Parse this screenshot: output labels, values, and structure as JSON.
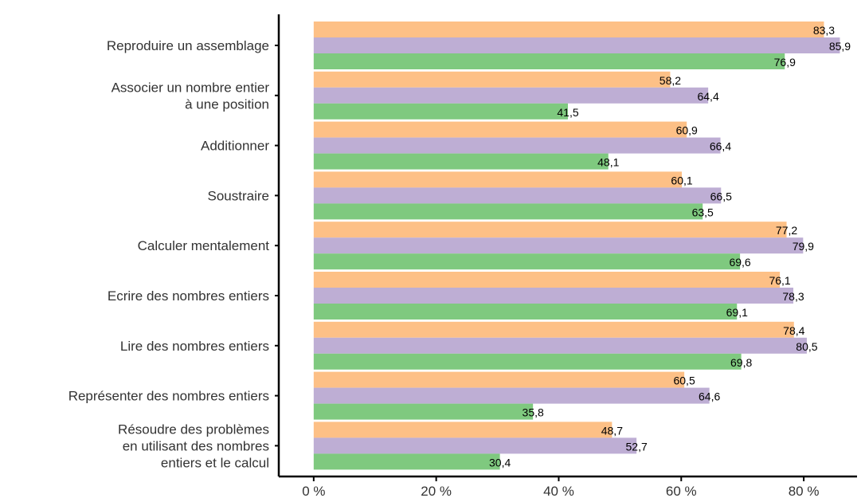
{
  "chart_data": {
    "type": "bar",
    "orientation": "horizontal",
    "categories": [
      "Reproduire un assemblage",
      "Associer un nombre entier\nà une position",
      "Additionner",
      "Soustraire",
      "Calculer mentalement",
      "Ecrire des nombres entiers",
      "Lire des nombres entiers",
      "Représenter des nombres entiers",
      "Résoudre des problèmes\nen utilisant des nombres\nentiers et le calcul"
    ],
    "series": [
      {
        "color": "#FDC086",
        "values": [
          83.3,
          58.2,
          60.9,
          60.1,
          77.2,
          76.1,
          78.4,
          60.5,
          48.7
        ],
        "labels": [
          "83,3",
          "58,2",
          "60,9",
          "60,1",
          "77,2",
          "76,1",
          "78,4",
          "60,5",
          "48,7"
        ]
      },
      {
        "color": "#BEAED4",
        "values": [
          85.9,
          64.4,
          66.4,
          66.5,
          79.9,
          78.3,
          80.5,
          64.6,
          52.7
        ],
        "labels": [
          "85,9",
          "64,4",
          "66,4",
          "66,5",
          "79,9",
          "78,3",
          "80,5",
          "64,6",
          "52,7"
        ]
      },
      {
        "color": "#7FC97F",
        "values": [
          76.9,
          41.5,
          48.1,
          63.5,
          69.6,
          69.1,
          69.8,
          35.8,
          30.4
        ],
        "labels": [
          "76,9",
          "41,5",
          "48,1",
          "63,5",
          "69,6",
          "69,1",
          "69,8",
          "35,8",
          "30,4"
        ]
      }
    ],
    "x_ticks": [
      0,
      20,
      40,
      60,
      80
    ],
    "x_tick_labels": [
      "0 %",
      "20 %",
      "40 %",
      "60 %",
      "80 %"
    ],
    "xlim": [
      -5.7,
      88.7
    ],
    "grid": false,
    "legend": "none",
    "title": "",
    "xlabel": "",
    "ylabel": ""
  }
}
